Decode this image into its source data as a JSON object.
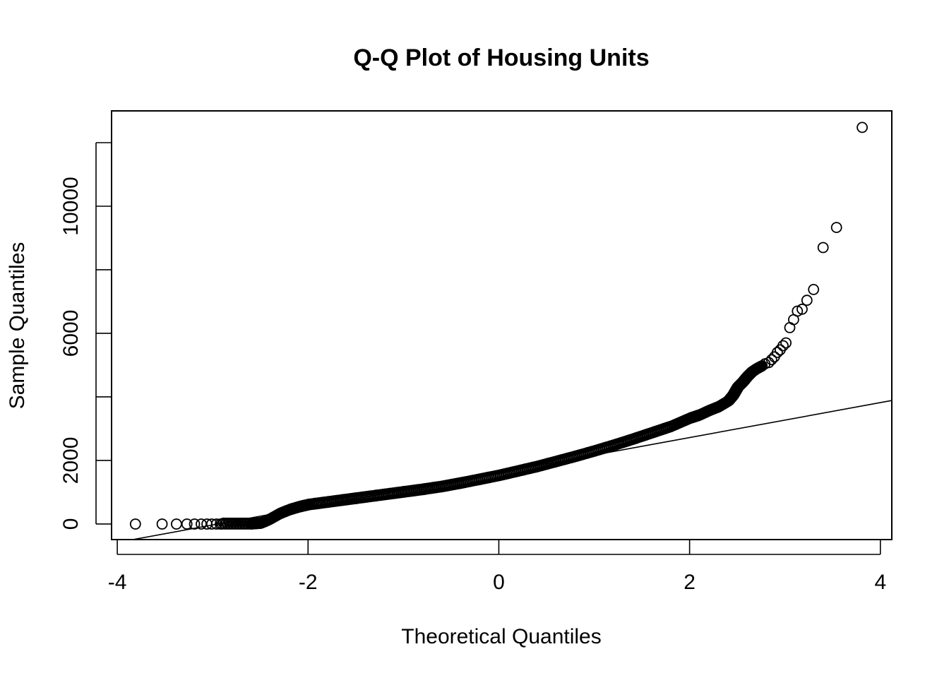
{
  "chart_data": {
    "type": "scatter",
    "title": "Q-Q Plot of Housing Units",
    "xlabel": "Theoretical Quantiles",
    "ylabel": "Sample Quantiles",
    "xlim": [
      -4.06,
      4.12
    ],
    "ylim": [
      -490,
      13000
    ],
    "x_ticks": [
      -4,
      -2,
      0,
      2,
      4
    ],
    "x_tick_labels": [
      "-4",
      "-2",
      "0",
      "2",
      "4"
    ],
    "y_ticks": [
      0,
      2000,
      4000,
      6000,
      8000,
      10000,
      12000
    ],
    "y_tick_labels": [
      "0",
      "2000",
      "",
      "6000",
      "",
      "10000",
      ""
    ],
    "grid": false,
    "reference_line": {
      "slope": 550,
      "intercept": 1620
    },
    "points": {
      "shape": "open-circle",
      "outliers_low": [
        [
          -3.81,
          0
        ],
        [
          -3.53,
          0
        ],
        [
          -3.38,
          0
        ],
        [
          -3.27,
          0
        ],
        [
          -3.19,
          0
        ],
        [
          -3.12,
          0
        ],
        [
          -3.06,
          0
        ],
        [
          -3.01,
          0
        ],
        [
          -2.96,
          0
        ],
        [
          -2.92,
          0
        ]
      ],
      "outliers_high": [
        [
          3.81,
          12480
        ],
        [
          3.54,
          9330
        ],
        [
          3.4,
          8700
        ],
        [
          3.3,
          7380
        ],
        [
          3.23,
          7040
        ],
        [
          3.18,
          6760
        ],
        [
          3.13,
          6700
        ],
        [
          3.09,
          6430
        ],
        [
          3.05,
          6180
        ],
        [
          3.01,
          5700
        ],
        [
          2.98,
          5610
        ],
        [
          2.95,
          5480
        ],
        [
          2.92,
          5400
        ],
        [
          2.89,
          5260
        ],
        [
          2.86,
          5170
        ],
        [
          2.83,
          5080
        ],
        [
          2.79,
          5040
        ],
        [
          2.75,
          4960
        ]
      ],
      "body_quantile_curve": [
        [
          -2.9,
          0
        ],
        [
          -2.6,
          0
        ],
        [
          -2.5,
          20
        ],
        [
          -2.45,
          80
        ],
        [
          -2.4,
          150
        ],
        [
          -2.3,
          320
        ],
        [
          -2.2,
          440
        ],
        [
          -2.1,
          530
        ],
        [
          -2.0,
          600
        ],
        [
          -1.8,
          680
        ],
        [
          -1.6,
          760
        ],
        [
          -1.4,
          840
        ],
        [
          -1.2,
          920
        ],
        [
          -1.0,
          1000
        ],
        [
          -0.8,
          1080
        ],
        [
          -0.6,
          1170
        ],
        [
          -0.4,
          1280
        ],
        [
          -0.2,
          1400
        ],
        [
          0.0,
          1520
        ],
        [
          0.2,
          1660
        ],
        [
          0.4,
          1800
        ],
        [
          0.6,
          1960
        ],
        [
          0.8,
          2120
        ],
        [
          1.0,
          2290
        ],
        [
          1.2,
          2470
        ],
        [
          1.4,
          2660
        ],
        [
          1.6,
          2860
        ],
        [
          1.8,
          3060
        ],
        [
          2.0,
          3320
        ],
        [
          2.1,
          3420
        ],
        [
          2.2,
          3560
        ],
        [
          2.3,
          3680
        ],
        [
          2.4,
          3860
        ],
        [
          2.45,
          4040
        ],
        [
          2.5,
          4300
        ],
        [
          2.55,
          4450
        ],
        [
          2.6,
          4630
        ],
        [
          2.65,
          4780
        ],
        [
          2.7,
          4880
        ],
        [
          2.75,
          4960
        ]
      ]
    }
  }
}
